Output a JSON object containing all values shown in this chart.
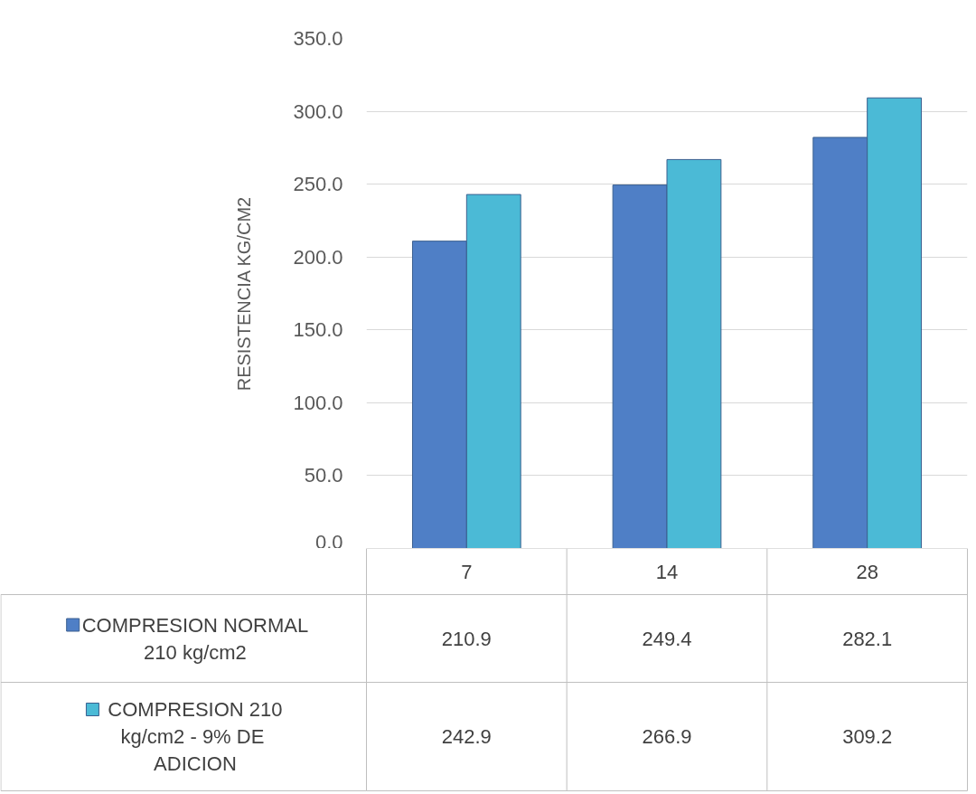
{
  "chart_data": {
    "type": "bar",
    "ylabel": "RESISTENCIA KG/CM2",
    "categories": [
      "7",
      "14",
      "28"
    ],
    "series": [
      {
        "name": "COMPRESION NORMAL 210 kg/cm2",
        "color": "#4f7fc6",
        "values": [
          210.9,
          249.4,
          282.1
        ]
      },
      {
        "name": "COMPRESION 210 kg/cm2  - 9% DE ADICION",
        "color": "#4bbad6",
        "values": [
          242.9,
          266.9,
          309.2
        ]
      }
    ],
    "ylim": [
      0,
      350
    ],
    "yticks": [
      {
        "value": 0,
        "label": "0.0"
      },
      {
        "value": 50,
        "label": "50.0"
      },
      {
        "value": 100,
        "label": "100.0"
      },
      {
        "value": 150,
        "label": "150.0"
      },
      {
        "value": 200,
        "label": "200.0"
      },
      {
        "value": 250,
        "label": "250.0"
      },
      {
        "value": 300,
        "label": "300.0"
      },
      {
        "value": 350,
        "label": "350.0"
      }
    ],
    "grid": "y",
    "legend": "bottom",
    "data_labels": true
  }
}
